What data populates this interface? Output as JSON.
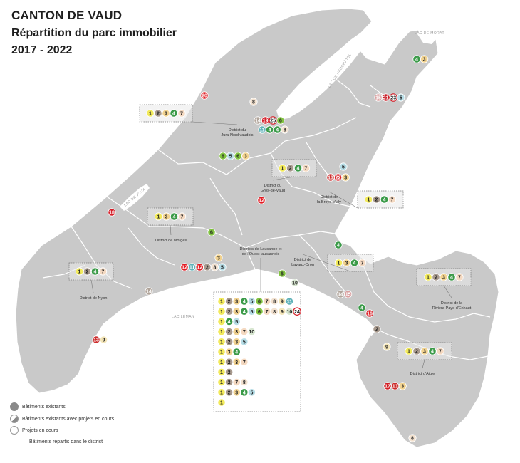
{
  "title": {
    "line1": "CANTON DE VAUD",
    "line2": "Répartition du parc immobilier",
    "line3": "2017 - 2022"
  },
  "colors": {
    "land": "#c9c9c9",
    "border": "#ffffff",
    "lake": "#ffffff",
    "c1": "#f2ea5c",
    "c2": "#a89a8e",
    "c3": "#f1d28f",
    "c4": "#3a9a48",
    "c5": "#b6dde6",
    "c6": "#82c342",
    "c7": "#f4d9c1",
    "c8": "#f2e1cf",
    "c9": "#f3e5b8",
    "c10": "#d7e6d0",
    "c11": "#5fb2b8",
    "c12": "#e31b23",
    "c13": "#cc2d2d",
    "c14": "#b0a49a",
    "c15": "#d9a0a0",
    "c16": "#d91e26",
    "c17": "#d12026",
    "c18": "#d41f29",
    "c19": "#d41f29",
    "c20": "#e01e23",
    "c21": "#c81e27",
    "c22": "#d91e26",
    "c23": "#ffffff",
    "c24": "#ffffff",
    "c25": "#ffffff"
  },
  "lakes": [
    {
      "name": "LAC DE NEUCHÂTEL"
    },
    {
      "name": "LAC DE MORAT"
    },
    {
      "name": "LAC DE JOUX"
    },
    {
      "name": "LAC LÉMAN"
    }
  ],
  "districts": [
    {
      "id": "jura",
      "name": "District du\nJura-Nord vaudois",
      "numbers": [
        1,
        2,
        3,
        4,
        7
      ]
    },
    {
      "id": "gros",
      "name": "District du\nGros-de-Vaud",
      "numbers": [
        1,
        2,
        4,
        7
      ]
    },
    {
      "id": "broye",
      "name": "District de\nla Broye-Vully",
      "numbers": [
        1,
        2,
        4,
        7
      ]
    },
    {
      "id": "morges",
      "name": "District de Morges",
      "numbers": [
        1,
        3,
        4,
        7
      ]
    },
    {
      "id": "nyon",
      "name": "District de Nyon",
      "numbers": [
        1,
        2,
        4,
        7
      ]
    },
    {
      "id": "lausanne",
      "name": "Districts de Lausanne et\nde l'Ouest lausannois",
      "numbers": []
    },
    {
      "id": "lavaux",
      "name": "District de\nLavaux-Oron",
      "numbers": [
        1,
        3,
        4,
        7
      ]
    },
    {
      "id": "riviera",
      "name": "District de la\nRiviera-Pays-d'Enhaut",
      "numbers": [
        1,
        2,
        3,
        4,
        7
      ]
    },
    {
      "id": "aigle",
      "name": "District d'Aigle",
      "numbers": [
        1,
        2,
        3,
        4,
        7
      ]
    }
  ],
  "lausanne_rows": [
    {
      "numbers": [
        1,
        2,
        3,
        4,
        5,
        6,
        7,
        8,
        9,
        11
      ]
    },
    {
      "numbers": [
        1,
        2,
        3,
        4,
        5,
        6,
        7,
        8,
        9,
        10,
        24
      ]
    },
    {
      "numbers": [
        1,
        4,
        5
      ]
    },
    {
      "numbers": [
        1,
        2,
        3,
        7,
        10
      ]
    },
    {
      "numbers": [
        1,
        2,
        3,
        5
      ]
    },
    {
      "numbers": [
        1,
        3,
        4
      ]
    },
    {
      "numbers": [
        1,
        2,
        3,
        7
      ]
    },
    {
      "numbers": [
        1,
        2
      ]
    },
    {
      "numbers": [
        1,
        2,
        7,
        8
      ]
    },
    {
      "numbers": [
        1,
        2,
        3,
        4,
        5
      ]
    },
    {
      "numbers": [
        1
      ]
    }
  ],
  "points": [
    {
      "id": "morat",
      "numbers": [
        4,
        3
      ]
    },
    {
      "id": "p8a",
      "numbers": [
        8
      ]
    },
    {
      "id": "p20",
      "numbers": [
        20
      ]
    },
    {
      "id": "p15",
      "numbers": [
        15,
        21,
        23,
        5
      ]
    },
    {
      "id": "yv1",
      "numbers": [
        14,
        19,
        25,
        6
      ]
    },
    {
      "id": "yv2",
      "numbers": [
        11,
        4,
        4,
        8
      ]
    },
    {
      "id": "orbe",
      "numbers": [
        6,
        5,
        6,
        3
      ]
    },
    {
      "id": "p5",
      "numbers": [
        5
      ]
    },
    {
      "id": "p13",
      "numbers": [
        13,
        22,
        3
      ]
    },
    {
      "id": "p12",
      "numbers": [
        12
      ]
    },
    {
      "id": "p18",
      "numbers": [
        18
      ]
    },
    {
      "id": "p6",
      "numbers": [
        6
      ]
    },
    {
      "id": "p3",
      "numbers": [
        3
      ]
    },
    {
      "id": "morges",
      "numbers": [
        12,
        11,
        12,
        2,
        8,
        5
      ]
    },
    {
      "id": "p4",
      "numbers": [
        4
      ]
    },
    {
      "id": "p6b",
      "numbers": [
        6
      ]
    },
    {
      "id": "p10",
      "numbers": [
        10
      ]
    },
    {
      "id": "p14",
      "numbers": [
        14
      ]
    },
    {
      "id": "vevey",
      "numbers": [
        14,
        15
      ]
    },
    {
      "id": "p4b",
      "numbers": [
        4
      ]
    },
    {
      "id": "p16",
      "numbers": [
        16
      ]
    },
    {
      "id": "p2",
      "numbers": [
        2
      ]
    },
    {
      "id": "nyon",
      "numbers": [
        13,
        9
      ]
    },
    {
      "id": "p9",
      "numbers": [
        9
      ]
    },
    {
      "id": "aigle",
      "numbers": [
        17,
        13,
        3
      ]
    },
    {
      "id": "p8b",
      "numbers": [
        8
      ]
    }
  ],
  "legend": {
    "existing": "Bâtiments existants",
    "mixed": "Bâtiments existants avec projets en cours",
    "projects": "Projets en cours",
    "district": "Bâtiments répartis dans le district"
  }
}
